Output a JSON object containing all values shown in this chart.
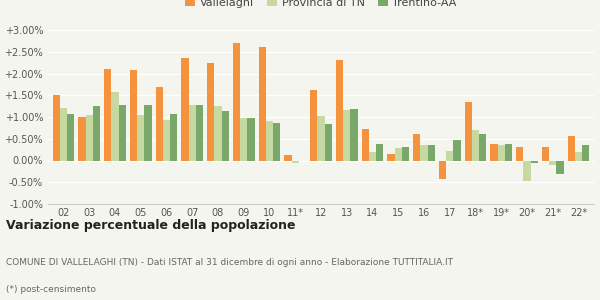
{
  "categories": [
    "02",
    "03",
    "04",
    "05",
    "06",
    "07",
    "08",
    "09",
    "10",
    "11*",
    "12",
    "13",
    "14",
    "15",
    "16",
    "17",
    "18*",
    "19*",
    "20*",
    "21*",
    "22*"
  ],
  "vallelaghi": [
    1.5,
    1.0,
    2.1,
    2.08,
    1.68,
    2.35,
    2.23,
    2.7,
    2.6,
    0.12,
    1.63,
    2.3,
    0.73,
    0.15,
    0.6,
    -0.42,
    1.35,
    0.38,
    0.32,
    0.32,
    0.57
  ],
  "provincia": [
    1.2,
    1.05,
    1.58,
    1.05,
    0.92,
    1.27,
    1.25,
    0.98,
    0.9,
    -0.05,
    1.02,
    1.15,
    0.2,
    0.28,
    0.35,
    0.22,
    0.7,
    0.35,
    -0.48,
    -0.1,
    0.2
  ],
  "trentino": [
    1.08,
    1.25,
    1.28,
    1.28,
    1.08,
    1.27,
    1.13,
    0.97,
    0.87,
    -0.02,
    0.85,
    1.18,
    0.38,
    0.3,
    0.35,
    0.48,
    0.6,
    0.37,
    -0.05,
    -0.3,
    0.35
  ],
  "color_vallelaghi": "#F5923E",
  "color_provincia": "#C5D9A0",
  "color_trentino": "#7AA86A",
  "title": "Variazione percentuale della popolazione",
  "subtitle1": "COMUNE DI VALLELAGHI (TN) - Dati ISTAT al 31 dicembre di ogni anno - Elaborazione TUTTITALIA.IT",
  "subtitle2": "(*) post-censimento",
  "legend_labels": [
    "Vallelaghi",
    "Provincia di TN",
    "Trentino-AA"
  ],
  "ylim": [
    -1.0,
    3.0
  ],
  "yticks": [
    -1.0,
    -0.5,
    0.0,
    0.5,
    1.0,
    1.5,
    2.0,
    2.5,
    3.0
  ],
  "background_color": "#f5f5f0",
  "bar_width": 0.28
}
